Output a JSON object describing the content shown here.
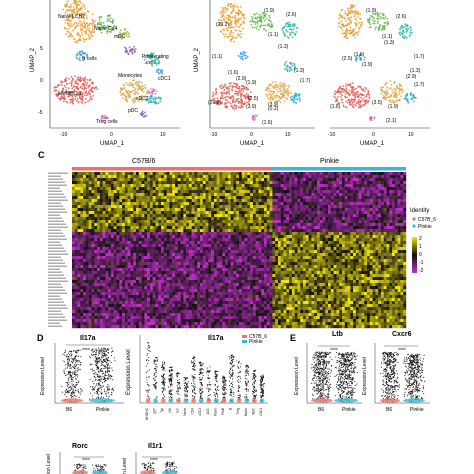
{
  "panels": {
    "C": "C",
    "D": "D",
    "E": "E"
  },
  "umap_left": {
    "xlabel": "UMAP_1",
    "ylabel": "UMAP_2",
    "x_ticks": [
      "-10",
      "0",
      "10"
    ],
    "y_ticks": [
      "5",
      "0",
      "-5"
    ],
    "cluster_labels": [
      {
        "id": "naive-lch-early",
        "text": "Naive LCH2"
      },
      {
        "id": "naive-cd4",
        "text": "Naive Cd4"
      },
      {
        "id": "mdc",
        "text": "mDC"
      },
      {
        "id": "b-cells",
        "text": "B cells"
      },
      {
        "id": "proliferating",
        "text": "Proliferating"
      },
      {
        "id": "proliferating-2",
        "text": "cells"
      },
      {
        "id": "cdc1",
        "text": "cDC1"
      },
      {
        "id": "monocytes",
        "text": "Monocytes"
      },
      {
        "id": "cdc2",
        "text": "cDC2"
      },
      {
        "id": "mhc",
        "text": "MHMHC II"
      },
      {
        "id": "pdc",
        "text": "pDC"
      },
      {
        "id": "treg",
        "text": "Treg cells"
      }
    ]
  },
  "umap_mid": {
    "xlabel": "UMAP_1",
    "ylabel": "UMAP_2",
    "x_ticks": [
      "-10",
      "0",
      "10"
    ],
    "counts": [
      "(29.2)",
      "(1.9)",
      "(2.6)",
      "(1.1)",
      "(1.1)",
      "(1.3)",
      "(1.6)",
      "(2.9)",
      "(1.9)",
      "(1.3)",
      "(1.7)",
      "(3.9)",
      "(0.2)",
      "(2.5)",
      "(29.0)",
      "(3.9)",
      "(1.6)"
    ]
  },
  "umap_right": {
    "xlabel": "UMAP_1",
    "x_ticks": [
      "-10",
      "0",
      "10"
    ],
    "counts": [
      "(2.6)",
      "(1.9)",
      "(1.1)",
      "(1.3)",
      "(1.7)",
      "(1.6)",
      "(2.5)",
      "(1.9)",
      "(1.3)",
      "(2.9)",
      "(1.7)",
      "(1.6)",
      "(3.5)",
      "(1.9)",
      "(2.1)"
    ]
  },
  "heatmap": {
    "group_left": "C57B/6",
    "group_right": "Pinkie",
    "legend_title": "Identity",
    "legend_items": [
      "C57B_6",
      "Pinkie"
    ],
    "scale_ticks": [
      "2",
      "1",
      "0",
      "-1",
      "-2"
    ],
    "colors": {
      "c57": "#e8736b",
      "pinkie": "#35b9d4",
      "high": "#f2e60f",
      "low": "#c22fc8",
      "mid": "#111111"
    }
  },
  "panel_d": {
    "violin1_title": "Il17a",
    "violin1_ylabel": "Expression Level",
    "violin1_x": [
      "B6",
      "Pinkie"
    ],
    "violin1_sig": "****",
    "violin2_title": "Il17a",
    "violin2_ylabel": "Expression Level",
    "violin2_legend": [
      "C57B_6",
      "Pinkie"
    ],
    "violin2_x": [
      "MHMHC",
      "gdT",
      "Tgr",
      "NK",
      "ILC",
      "Neutr",
      "CD4",
      "cDC2",
      "pDC",
      "Mono",
      "Prolif",
      "B",
      "Treg",
      "Naive",
      "mDC",
      "cDC1"
    ]
  },
  "panel_e": {
    "violin1_title": "Ltb",
    "violin1_ylabel": "Expression Level",
    "violin1_x": [
      "B6",
      "Pinkie"
    ],
    "violin1_sig": "****",
    "violin2_title": "Cxcr6",
    "violin2_ylabel": "Expression Level",
    "violin2_x": [
      "B6",
      "Pinkie"
    ],
    "violin2_sig": "****"
  },
  "panel_bottom": {
    "violin1_title": "Rorc",
    "violin1_ylabel": "ion Level",
    "violin1_sig": "****",
    "violin2_title": "Il1r1",
    "violin2_ylabel": "n Level",
    "violin2_sig": "****"
  }
}
